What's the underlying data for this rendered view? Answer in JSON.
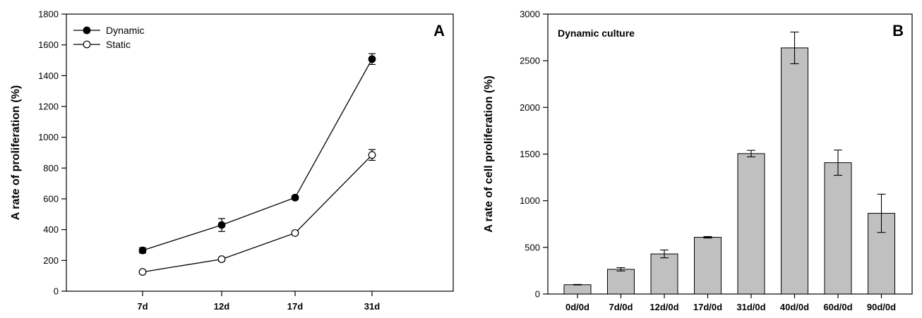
{
  "chart_data": [
    {
      "type": "line",
      "panel": "A",
      "title": "",
      "xlabel": "",
      "ylabel": "A rate of proliferation (%)",
      "categories": [
        "7d",
        "12d",
        "17d",
        "31d"
      ],
      "ylim": [
        0,
        1800
      ],
      "yticks": [
        0,
        200,
        400,
        600,
        800,
        1000,
        1200,
        1400,
        1600,
        1800
      ],
      "grid": false,
      "legend": "top-left",
      "series": [
        {
          "name": "Dynamic",
          "marker": "filled-circle",
          "values": [
            265,
            430,
            608,
            1508
          ],
          "errors": [
            18,
            42,
            12,
            35
          ]
        },
        {
          "name": "Static",
          "marker": "open-circle",
          "values": [
            125,
            208,
            378,
            885
          ],
          "errors": [
            10,
            12,
            10,
            35
          ]
        }
      ]
    },
    {
      "type": "bar",
      "panel": "B",
      "title": "",
      "annotation": "Dynamic culture",
      "xlabel": "",
      "ylabel": "A rate of cell proliferation (%)",
      "categories": [
        "0d/0d",
        "7d/0d",
        "12d/0d",
        "17d/0d",
        "31d/0d",
        "40d/0d",
        "60d/0d",
        "90d/0d"
      ],
      "values": [
        100,
        265,
        430,
        608,
        1505,
        2638,
        1408,
        865
      ],
      "errors": [
        3,
        18,
        42,
        8,
        35,
        170,
        135,
        205
      ],
      "bar_color": "#c0c0c0",
      "ylim": [
        0,
        3000
      ],
      "yticks": [
        0,
        500,
        1000,
        1500,
        2000,
        2500,
        3000
      ],
      "grid": false
    }
  ]
}
